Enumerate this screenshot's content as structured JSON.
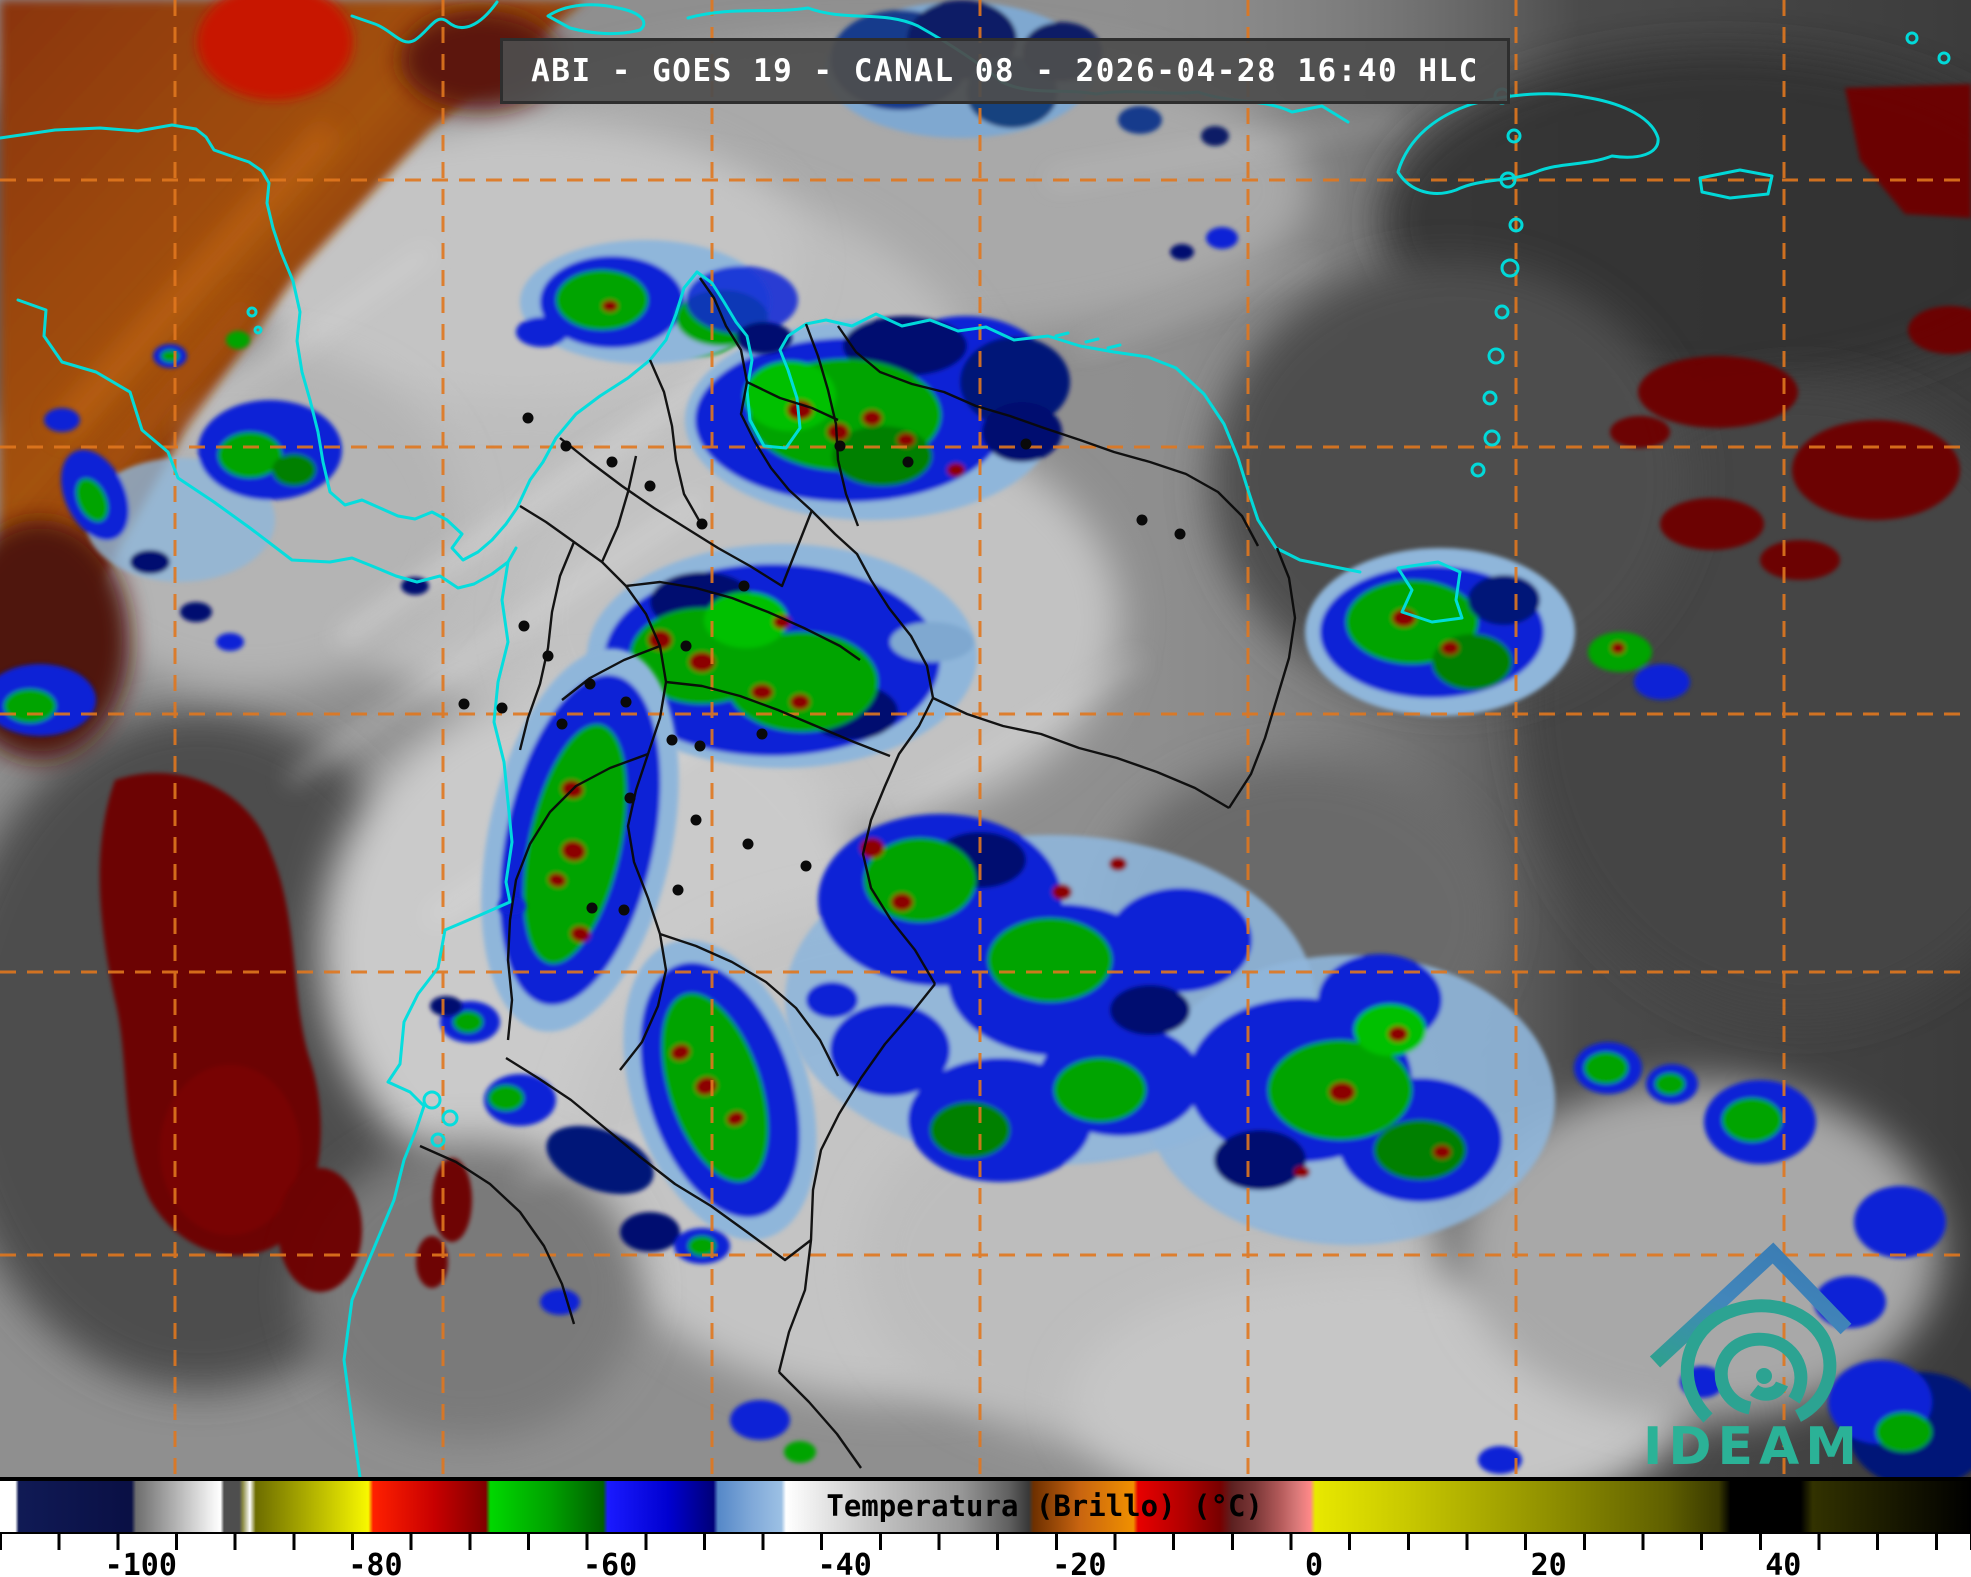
{
  "header": {
    "title": "ABI - GOES 19 - CANAL 08 - 2026-04-28 16:40 HLC",
    "satellite": "GOES 19",
    "instrument": "ABI",
    "channel": "CANAL 08",
    "datetime": "2026-04-28 16:40 HLC"
  },
  "logo": {
    "text": "IDEAM",
    "roof_color": "#4286bb",
    "swirl_color": "#2ca392",
    "text_color": "#2bb297"
  },
  "colorbar": {
    "label": "Temperatura (Brillo) (°C)",
    "units": "°C",
    "range": {
      "min": -112,
      "max": 56
    },
    "tick_step": 5,
    "tick_labels": [
      {
        "value": -100,
        "label": "-100"
      },
      {
        "value": -80,
        "label": "-80"
      },
      {
        "value": -60,
        "label": "-60"
      },
      {
        "value": -40,
        "label": "-40"
      },
      {
        "value": -20,
        "label": "-20"
      },
      {
        "value": 0,
        "label": "0"
      },
      {
        "value": 20,
        "label": "20"
      },
      {
        "value": 40,
        "label": "40"
      }
    ],
    "stops": [
      {
        "t": -112,
        "c": "#ffffff"
      },
      {
        "t": -110.7,
        "c": "#ffffff"
      },
      {
        "t": -110.4,
        "c": "#101a55"
      },
      {
        "t": -101.2,
        "c": "#0a1045"
      },
      {
        "t": -100.8,
        "c": "#0a1045"
      },
      {
        "t": -100.4,
        "c": "#6e6e6e"
      },
      {
        "t": -94,
        "c": "#f0f0f0"
      },
      {
        "t": -93.2,
        "c": "#ffffff"
      },
      {
        "t": -92.9,
        "c": "#4e4e4e"
      },
      {
        "t": -91.6,
        "c": "#4e4e4e"
      },
      {
        "t": -91.3,
        "c": "#8c8c46"
      },
      {
        "t": -90.7,
        "c": "#ffffff"
      },
      {
        "t": -90.2,
        "c": "#6d6d00"
      },
      {
        "t": -80.6,
        "c": "#f8f800"
      },
      {
        "t": -80.2,
        "c": "#ff2000"
      },
      {
        "t": -75,
        "c": "#c80000"
      },
      {
        "t": -70.6,
        "c": "#800000"
      },
      {
        "t": -70.2,
        "c": "#00d800"
      },
      {
        "t": -65,
        "c": "#00a000"
      },
      {
        "t": -60.6,
        "c": "#006000"
      },
      {
        "t": -60.2,
        "c": "#1a1aff"
      },
      {
        "t": -55,
        "c": "#0000d0"
      },
      {
        "t": -51.2,
        "c": "#000078"
      },
      {
        "t": -50.8,
        "c": "#5588c8"
      },
      {
        "t": -48,
        "c": "#7fa8d8"
      },
      {
        "t": -45.4,
        "c": "#9cc0e4"
      },
      {
        "t": -45,
        "c": "#ffffff"
      },
      {
        "t": -38,
        "c": "#c8c8c8"
      },
      {
        "t": -30,
        "c": "#969696"
      },
      {
        "t": -26,
        "c": "#606060"
      },
      {
        "t": -24.3,
        "c": "#383838"
      },
      {
        "t": -23.9,
        "c": "#6e3000"
      },
      {
        "t": -20,
        "c": "#c86410"
      },
      {
        "t": -15.4,
        "c": "#f09000"
      },
      {
        "t": -15,
        "c": "#e80000"
      },
      {
        "t": -11,
        "c": "#b00000"
      },
      {
        "t": -8,
        "c": "#780000"
      },
      {
        "t": -7,
        "c": "#5c2020"
      },
      {
        "t": -5,
        "c": "#7c3838"
      },
      {
        "t": -3,
        "c": "#b05858"
      },
      {
        "t": -1.5,
        "c": "#d87878"
      },
      {
        "t": -0.3,
        "c": "#ff8888"
      },
      {
        "t": 0.1,
        "c": "#e8e800"
      },
      {
        "t": 8,
        "c": "#c8c800"
      },
      {
        "t": 20,
        "c": "#909000"
      },
      {
        "t": 30,
        "c": "#606000"
      },
      {
        "t": 34.5,
        "c": "#3a3a00"
      },
      {
        "t": 35.5,
        "c": "#000000"
      },
      {
        "t": 41.5,
        "c": "#000000"
      },
      {
        "t": 42.5,
        "c": "#323200"
      },
      {
        "t": 50,
        "c": "#161600"
      },
      {
        "t": 56,
        "c": "#000000"
      }
    ]
  },
  "map": {
    "palette": {
      "grid": "#e0771e",
      "coast": "#00dede",
      "bord": "#0a0a0a"
    },
    "legend_semantics": {
      "grid_lines": "latitude/longitude graticule (dashed orange)",
      "coastlines": "cyan",
      "political_borders": "black",
      "city_markers": "black dots",
      "cold_cloud_tops": "blue / green with dark-red cores",
      "warm_dry_air": "orange / dark red (top-left)",
      "very_warm_surface": "dark red patches",
      "mid_clouds": "light gray",
      "clear_warm_ocean": "dark gray"
    }
  }
}
